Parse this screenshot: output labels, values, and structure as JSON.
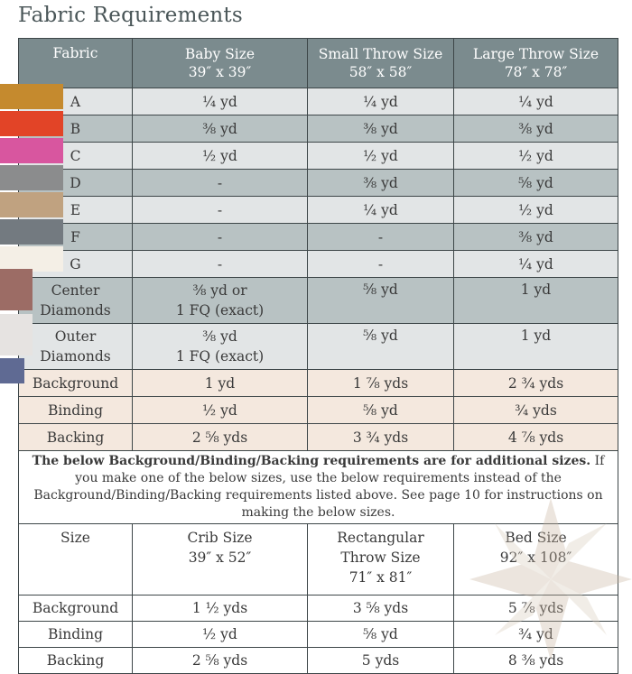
{
  "title": "Fabric Requirements",
  "header": {
    "fabric": "Fabric",
    "baby": "Baby Size",
    "baby_dim": "39″ x 39″",
    "small": "Small Throw Size",
    "small_dim": "58″ x 58″",
    "large": "Large Throw Size",
    "large_dim": "78″ x 78″"
  },
  "rows": [
    {
      "fabric": "A",
      "swatch": "#c58a2e",
      "baby": "¼ yd",
      "small": "¼ yd",
      "large": "¼ yd"
    },
    {
      "fabric": "B",
      "swatch": "#e24427",
      "baby": "⅜ yd",
      "small": "⅜ yd",
      "large": "⅜ yd"
    },
    {
      "fabric": "C",
      "swatch": "#d8569f",
      "baby": "½ yd",
      "small": "½ yd",
      "large": "½ yd"
    },
    {
      "fabric": "D",
      "swatch": "#8b8c8d",
      "baby": "-",
      "small": "⅜ yd",
      "large": "⅝ yd"
    },
    {
      "fabric": "E",
      "swatch": "#c0a280",
      "baby": "-",
      "small": "¼ yd",
      "large": "½ yd"
    },
    {
      "fabric": "F",
      "swatch": "#737a80",
      "baby": "-",
      "small": "-",
      "large": "⅜ yd"
    },
    {
      "fabric": "G",
      "swatch": "#f4efe6",
      "baby": "-",
      "small": "-",
      "large": "¼ yd"
    }
  ],
  "center": {
    "line1": "Center",
    "line2": "Diamonds",
    "swatch": "#9c6c65",
    "baby1": "⅜ yd or",
    "baby2": "1 FQ (exact)",
    "small": "⅝ yd",
    "large": "1 yd"
  },
  "outer": {
    "line1": "Outer",
    "line2": "Diamonds",
    "swatch": "#e6e3e1",
    "baby1": "⅜ yd",
    "baby2": "1 FQ (exact)",
    "small": "⅝ yd",
    "large": "1 yd"
  },
  "extras": [
    {
      "label": "Background",
      "swatch": "#5f6a93",
      "baby": "1 yd",
      "small": "1 ⅞ yds",
      "large": "2 ¾ yds"
    },
    {
      "label": "Binding",
      "baby": "½ yd",
      "small": "⅝ yd",
      "large": "¾ yds"
    },
    {
      "label": "Backing",
      "baby": "2 ⅝ yds",
      "small": "3 ¾ yds",
      "large": "4 ⅞ yds"
    }
  ],
  "note": {
    "bold": "The below Background/Binding/Backing requirements are for additional sizes.",
    "rest": " If you make one of the below sizes, use the below requirements instead of the Background/Binding/Backing requirements listed above. See page 10 for instructions on making the below sizes."
  },
  "sizes": {
    "label": "Size",
    "crib": "Crib Size",
    "crib_dim": "39″ x 52″",
    "rect1": "Rectangular",
    "rect2": "Throw Size",
    "rect_dim": "71″ x 81″",
    "bed": "Bed Size",
    "bed_dim": "92″ x 108″"
  },
  "size_rows": [
    {
      "label": "Background",
      "crib": "1 ½ yds",
      "rect": "3 ⅝ yds",
      "bed": "5 ⅞ yds"
    },
    {
      "label": "Binding",
      "crib": "½ yd",
      "rect": "⅝ yd",
      "bed": "¾ yd"
    },
    {
      "label": "Backing",
      "crib": "2 ⅝ yds",
      "rect": "5 yds",
      "bed": "8 ⅜ yds"
    }
  ]
}
